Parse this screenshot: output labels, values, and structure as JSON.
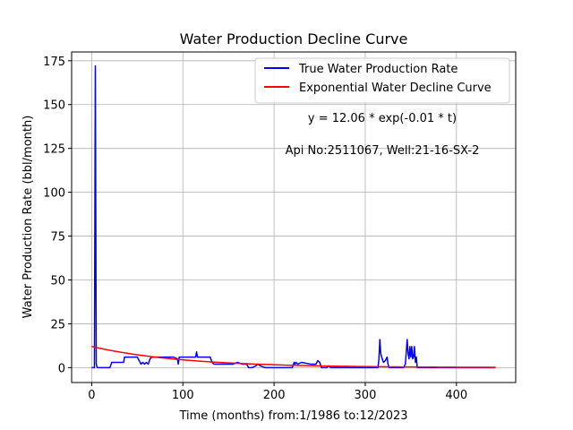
{
  "chart_data": {
    "type": "line",
    "title": "Water Production Decline Curve",
    "xlabel": "Time (months) from:1/1986 to:12/2023",
    "ylabel": "Water Production Rate (bbl/month)",
    "xlim": [
      -22,
      465
    ],
    "ylim": [
      -8.5,
      180
    ],
    "xticks": [
      0,
      100,
      200,
      300,
      400
    ],
    "yticks": [
      0,
      25,
      50,
      75,
      100,
      125,
      150,
      175
    ],
    "grid": true,
    "legend_position": "top-right",
    "annotations": [
      "y = 12.06 * exp(-0.01 * t)",
      "Api No:2511067, Well:21-16-SX-2"
    ],
    "series": [
      {
        "name": "True Water Production Rate",
        "color": "#0000ff",
        "x": [
          0,
          3,
          4,
          5,
          6,
          7,
          8,
          20,
          22,
          35,
          36,
          40,
          50,
          52,
          54,
          56,
          58,
          60,
          62,
          64,
          66,
          68,
          70,
          80,
          90,
          94,
          95,
          96,
          100,
          110,
          114,
          115,
          116,
          130,
          132,
          134,
          136,
          140,
          145,
          150,
          155,
          160,
          165,
          170,
          172,
          176,
          180,
          182,
          185,
          190,
          200,
          210,
          220,
          222,
          223,
          224,
          226,
          230,
          240,
          246,
          248,
          250,
          252,
          258,
          260,
          262,
          266,
          270,
          300,
          310,
          314,
          315,
          316,
          317,
          318,
          320,
          322,
          324,
          325,
          326,
          327,
          328,
          330,
          340,
          342,
          344,
          346,
          347,
          348,
          349,
          350,
          351,
          352,
          353,
          354,
          355,
          356,
          357,
          358,
          360,
          380,
          400,
          420,
          443
        ],
        "y": [
          0,
          0,
          172,
          2,
          0,
          0,
          0,
          0,
          3,
          3,
          6,
          6,
          6,
          4,
          2,
          3,
          2,
          3,
          2,
          5,
          6,
          6,
          6,
          6,
          6,
          5,
          2,
          6,
          6,
          6,
          6,
          9,
          6,
          6,
          3,
          2,
          2,
          2,
          2,
          2,
          2,
          3,
          2,
          2,
          0,
          0,
          1,
          2,
          1,
          0,
          0,
          0,
          0,
          3,
          2,
          3,
          2,
          3,
          2,
          2,
          4,
          3,
          0,
          0,
          1,
          0,
          0,
          0,
          0,
          0,
          0,
          5,
          16,
          8,
          6,
          3,
          4,
          6,
          2,
          0,
          0,
          0,
          0,
          0,
          0,
          2,
          16,
          8,
          5,
          12,
          6,
          12,
          5,
          6,
          12,
          3,
          6,
          0,
          0,
          0,
          0,
          0,
          0,
          0
        ]
      },
      {
        "name": "Exponential Water Decline Curve",
        "color": "#ff0000",
        "a": 12.06,
        "b": 0.01,
        "x_range": [
          0,
          443
        ]
      }
    ]
  }
}
